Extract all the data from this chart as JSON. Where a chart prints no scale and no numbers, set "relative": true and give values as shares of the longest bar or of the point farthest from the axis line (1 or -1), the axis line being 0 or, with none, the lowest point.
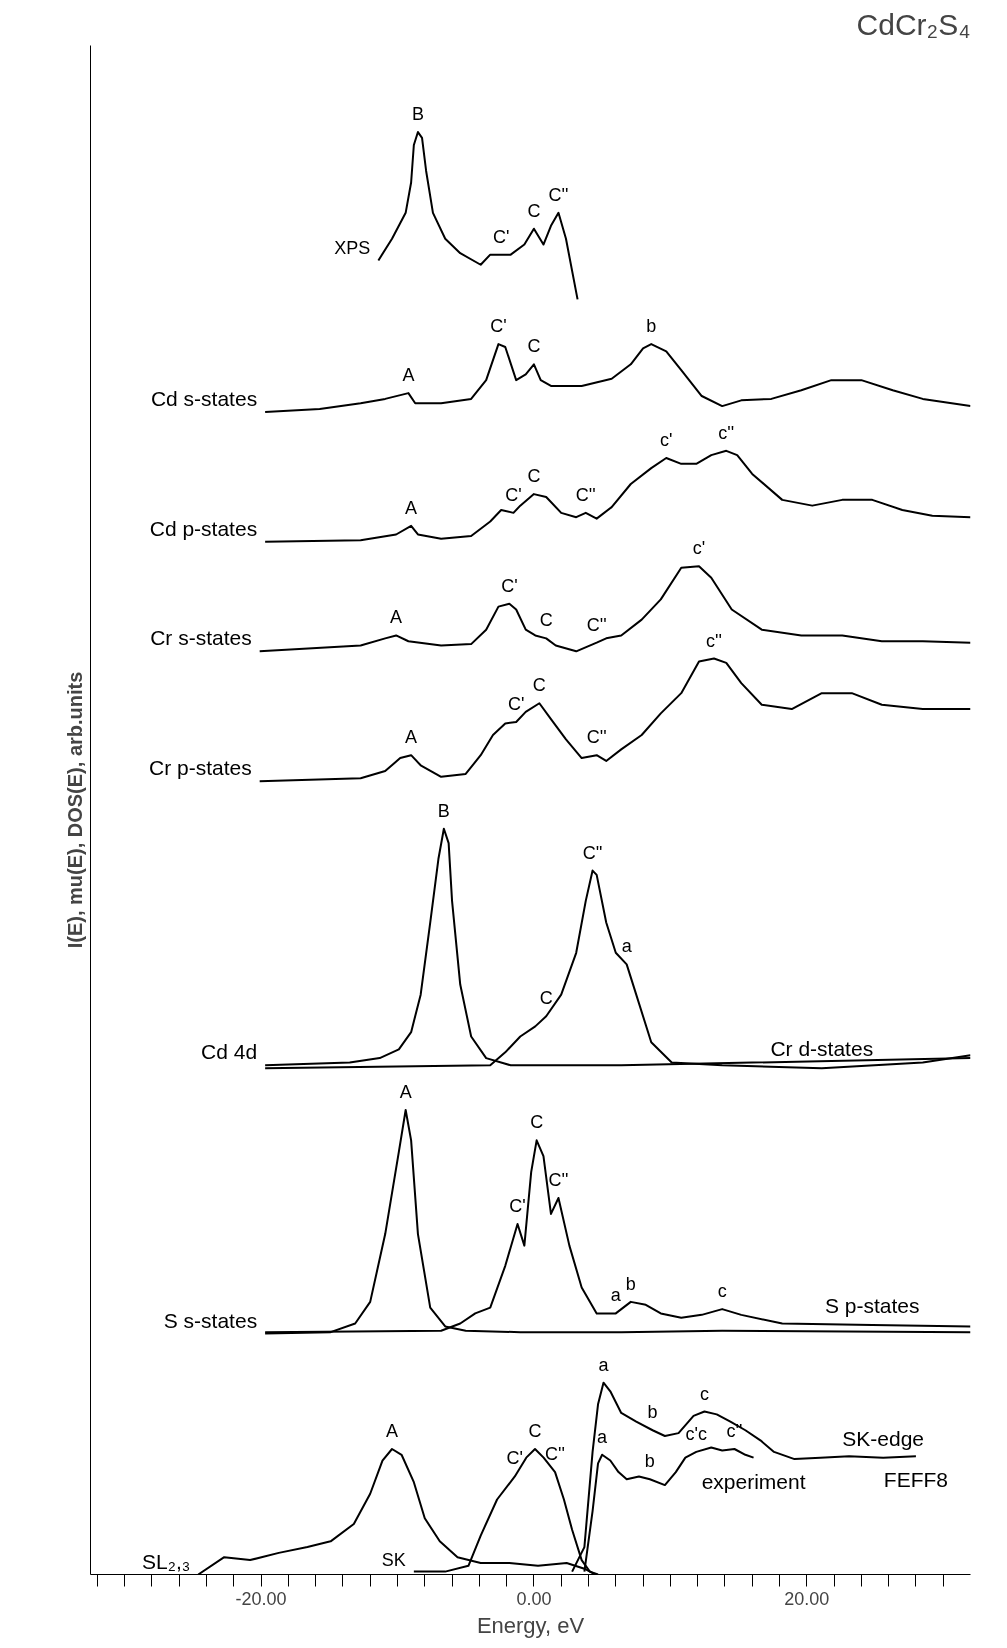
{
  "chart_data": {
    "type": "line",
    "relative": true,
    "title": "CdCr₂S₄",
    "xlabel": "Energy, eV",
    "ylabel": "I(E), mu(E), DOS(E), arb.units",
    "xlim": [
      -32.5,
      32
    ],
    "xticks": [
      {
        "value": -32,
        "label": null
      },
      {
        "value": -30,
        "label": null
      },
      {
        "value": -28,
        "label": null
      },
      {
        "value": -26,
        "label": null
      },
      {
        "value": -24,
        "label": null
      },
      {
        "value": -22,
        "label": null
      },
      {
        "value": -20,
        "label": "-20.00"
      },
      {
        "value": -18,
        "label": null
      },
      {
        "value": -16,
        "label": null
      },
      {
        "value": -14,
        "label": null
      },
      {
        "value": -12,
        "label": null
      },
      {
        "value": -10,
        "label": null
      },
      {
        "value": -8,
        "label": null
      },
      {
        "value": -6,
        "label": null
      },
      {
        "value": -4,
        "label": null
      },
      {
        "value": -2,
        "label": null
      },
      {
        "value": 0,
        "label": "0.00"
      },
      {
        "value": 2,
        "label": null
      },
      {
        "value": 4,
        "label": null
      },
      {
        "value": 6,
        "label": null
      },
      {
        "value": 8,
        "label": null
      },
      {
        "value": 10,
        "label": null
      },
      {
        "value": 12,
        "label": null
      },
      {
        "value": 14,
        "label": null
      },
      {
        "value": 16,
        "label": null
      },
      {
        "value": 18,
        "label": null
      },
      {
        "value": 20,
        "label": "20.00"
      },
      {
        "value": 22,
        "label": null
      },
      {
        "value": 24,
        "label": null
      },
      {
        "value": 26,
        "label": null
      },
      {
        "value": 28,
        "label": null
      },
      {
        "value": 30,
        "label": null
      }
    ],
    "grid": false,
    "line_style": "solid",
    "marker": "none",
    "series": [
      {
        "color": "#000000",
        "x": [
          -11.4,
          -10.4,
          -9.4,
          -9.0,
          -8.8,
          -8.5,
          -8.2,
          -7.9,
          -7.4,
          -6.5,
          -5.4,
          -3.9,
          -3.2,
          -2.4,
          -1.7,
          -0.7,
          0,
          0.7,
          1.25,
          1.8,
          2.35,
          3.2
        ],
        "values": [
          0.911,
          0.926,
          0.944,
          0.965,
          0.991,
          1.0,
          0.996,
          0.973,
          0.944,
          0.926,
          0.916,
          0.908,
          0.915,
          0.915,
          0.915,
          0.922,
          0.933,
          0.922,
          0.935,
          0.944,
          0.926,
          0.884
        ]
      },
      {
        "color": "#000000",
        "x": [
          -19.7,
          -15.7,
          -12.7,
          -10.9,
          -9.2,
          -8.7,
          -6.8,
          -4.6,
          -3.5,
          -2.6,
          -2.1,
          -1.3,
          -0.6,
          0,
          0.5,
          1.25,
          3.5,
          5.7,
          7.1,
          8.0,
          8.6,
          9.7,
          10.8,
          12.3,
          13.8,
          15.2,
          17.4,
          19.6,
          21.8,
          24.0,
          26.3,
          28.5,
          32.0
        ],
        "values": [
          0.806,
          0.808,
          0.812,
          0.815,
          0.819,
          0.812,
          0.812,
          0.815,
          0.828,
          0.853,
          0.851,
          0.828,
          0.832,
          0.839,
          0.828,
          0.824,
          0.824,
          0.829,
          0.839,
          0.85,
          0.853,
          0.848,
          0.835,
          0.817,
          0.81,
          0.814,
          0.815,
          0.821,
          0.828,
          0.828,
          0.821,
          0.815,
          0.81
        ]
      },
      {
        "color": "#000000",
        "x": [
          -19.7,
          -12.7,
          -10.1,
          -9.0,
          -8.5,
          -6.8,
          -4.6,
          -3.2,
          -2.4,
          -1.5,
          -1.0,
          0,
          0.9,
          2.0,
          3.1,
          3.8,
          4.6,
          5.7,
          7.1,
          8.6,
          9.7,
          10.8,
          11.9,
          13.0,
          14.1,
          14.9,
          16.0,
          18.2,
          20.4,
          22.6,
          24.8,
          27.0,
          29.2,
          32.0
        ],
        "values": [
          0.716,
          0.717,
          0.721,
          0.727,
          0.721,
          0.718,
          0.72,
          0.73,
          0.738,
          0.736,
          0.741,
          0.749,
          0.747,
          0.736,
          0.733,
          0.736,
          0.732,
          0.74,
          0.756,
          0.767,
          0.774,
          0.77,
          0.77,
          0.776,
          0.779,
          0.776,
          0.763,
          0.745,
          0.741,
          0.745,
          0.745,
          0.738,
          0.734,
          0.733
        ]
      },
      {
        "color": "#000000",
        "x": [
          -20.1,
          -12.7,
          -10.9,
          -10.1,
          -9.2,
          -6.8,
          -4.6,
          -3.5,
          -2.6,
          -1.8,
          -1.3,
          -0.6,
          0.1,
          0.9,
          1.6,
          3.1,
          4.6,
          5.3,
          6.4,
          7.9,
          9.3,
          10.8,
          12.1,
          13.0,
          14.5,
          16.7,
          19.6,
          22.6,
          25.5,
          28.5,
          32.0
        ],
        "values": [
          0.64,
          0.644,
          0.649,
          0.651,
          0.647,
          0.644,
          0.645,
          0.655,
          0.671,
          0.673,
          0.669,
          0.655,
          0.651,
          0.649,
          0.644,
          0.64,
          0.646,
          0.649,
          0.651,
          0.662,
          0.676,
          0.698,
          0.699,
          0.691,
          0.669,
          0.655,
          0.651,
          0.651,
          0.647,
          0.647,
          0.646
        ]
      },
      {
        "color": "#000000",
        "x": [
          -20.1,
          -12.7,
          -10.9,
          -9.8,
          -9.0,
          -8.3,
          -6.8,
          -5.0,
          -3.9,
          -3.0,
          -2.1,
          -1.3,
          -0.6,
          0.4,
          1.25,
          2.35,
          3.5,
          4.6,
          5.3,
          6.4,
          7.9,
          9.3,
          10.8,
          12.1,
          13.2,
          14.1,
          15.2,
          16.7,
          18.9,
          21.1,
          23.3,
          25.5,
          28.5,
          32.0
        ],
        "values": [
          0.55,
          0.552,
          0.557,
          0.566,
          0.568,
          0.561,
          0.553,
          0.555,
          0.568,
          0.582,
          0.59,
          0.591,
          0.598,
          0.604,
          0.593,
          0.579,
          0.566,
          0.568,
          0.564,
          0.572,
          0.582,
          0.597,
          0.611,
          0.633,
          0.635,
          0.632,
          0.618,
          0.603,
          0.6,
          0.611,
          0.611,
          0.603,
          0.6,
          0.6
        ]
      },
      {
        "color": "#000000",
        "x": [
          -19.7,
          -13.5,
          -11.3,
          -9.9,
          -9.0,
          -8.3,
          -7.6,
          -7.0,
          -6.6,
          -6.25,
          -6.0,
          -5.4,
          -4.6,
          -3.5,
          -1.7,
          6.4,
          32
        ],
        "values": [
          0.353,
          0.355,
          0.358,
          0.364,
          0.376,
          0.402,
          0.452,
          0.496,
          0.517,
          0.507,
          0.467,
          0.409,
          0.373,
          0.358,
          0.353,
          0.353,
          0.358
        ]
      },
      {
        "color": "#000000",
        "x": [
          -19.7,
          -3.2,
          -2.1,
          -1.0,
          0.1,
          0.9,
          2.0,
          3.1,
          3.8,
          4.3,
          4.6,
          5.3,
          6.0,
          6.8,
          7.5,
          8.6,
          10.1,
          13.8,
          21.1,
          28.5,
          32
        ],
        "values": [
          0.351,
          0.353,
          0.362,
          0.373,
          0.38,
          0.387,
          0.402,
          0.431,
          0.467,
          0.488,
          0.485,
          0.452,
          0.431,
          0.423,
          0.402,
          0.369,
          0.355,
          0.353,
          0.351,
          0.355,
          0.36
        ]
      },
      {
        "color": "#000000",
        "x": [
          -19.7,
          -14.9,
          -13.1,
          -12.0,
          -10.9,
          -9.9,
          -9.4,
          -9.0,
          -8.5,
          -7.6,
          -6.5,
          -5.0,
          -1.0,
          6.4,
          13.8,
          32
        ],
        "values": [
          0.167,
          0.168,
          0.174,
          0.189,
          0.236,
          0.293,
          0.322,
          0.301,
          0.236,
          0.185,
          0.172,
          0.169,
          0.168,
          0.168,
          0.169,
          0.168
        ]
      },
      {
        "color": "#000000",
        "x": [
          -19.7,
          -6.8,
          -5.4,
          -4.3,
          -3.2,
          -2.1,
          -1.2,
          -0.7,
          -0.2,
          0.2,
          0.7,
          1.25,
          1.8,
          2.6,
          3.5,
          4.6,
          6.0,
          7.1,
          8.2,
          9.3,
          10.8,
          12.3,
          13.8,
          15.2,
          18.2,
          24.8,
          32
        ],
        "values": [
          0.168,
          0.169,
          0.174,
          0.181,
          0.185,
          0.214,
          0.243,
          0.228,
          0.279,
          0.301,
          0.29,
          0.25,
          0.261,
          0.228,
          0.199,
          0.181,
          0.181,
          0.189,
          0.187,
          0.181,
          0.178,
          0.18,
          0.184,
          0.18,
          0.174,
          0.173,
          0.172
        ]
      },
      {
        "color": "#000000",
        "x": [
          -24.6,
          -22.7,
          -20.8,
          -18.7,
          -16.6,
          -14.9,
          -13.2,
          -12.0,
          -11.1,
          -10.4,
          -9.7,
          -8.8,
          -8.0,
          -6.9,
          -5.6,
          -3.9,
          -1.8,
          0.3,
          2.4,
          3.7,
          4.5
        ],
        "values": [
          0,
          0.012,
          0.01,
          0.015,
          0.019,
          0.023,
          0.035,
          0.056,
          0.079,
          0.087,
          0.083,
          0.064,
          0.039,
          0.023,
          0.012,
          0.008,
          0.008,
          0.006,
          0.008,
          0.004,
          0
        ]
      },
      {
        "color": "#000000",
        "x": [
          -8.8,
          -6.5,
          -4.8,
          -3.9,
          -2.7,
          -1.4,
          -0.56,
          0.08,
          0.71,
          1.55,
          2.2,
          2.8,
          3.5,
          4.1,
          4.7
        ],
        "values": [
          0.002,
          0.002,
          0.006,
          0.027,
          0.052,
          0.068,
          0.081,
          0.087,
          0.081,
          0.071,
          0.052,
          0.031,
          0.01,
          0.002,
          0
        ]
      },
      {
        "color": "#000000",
        "x": [
          2.8,
          3.7,
          4.3,
          4.7,
          5.1,
          5.6,
          6.4,
          7.5,
          8.7,
          9.6,
          10.6,
          11.7,
          12.5,
          13.4,
          14.4,
          15.5,
          16.6,
          17.6,
          19.1,
          21.0,
          23.1,
          25.6,
          28.0
        ],
        "values": [
          0.002,
          0.019,
          0.085,
          0.118,
          0.133,
          0.127,
          0.112,
          0.106,
          0.1,
          0.096,
          0.098,
          0.11,
          0.113,
          0.111,
          0.106,
          0.1,
          0.093,
          0.085,
          0.08,
          0.081,
          0.082,
          0.081,
          0.082
        ]
      },
      {
        "color": "#000000",
        "x": [
          3.7,
          4.3,
          4.7,
          5.0,
          5.6,
          6.2,
          6.8,
          7.7,
          8.5,
          9.6,
          10.4,
          11.1,
          11.9,
          13.0,
          13.8,
          14.7,
          15.5,
          16.1
        ],
        "values": [
          0.002,
          0.044,
          0.077,
          0.083,
          0.079,
          0.071,
          0.066,
          0.068,
          0.066,
          0.062,
          0.071,
          0.081,
          0.085,
          0.088,
          0.086,
          0.087,
          0.083,
          0.081
        ]
      }
    ],
    "annotations": [
      {
        "text": "B",
        "x": -8.5,
        "y": 1.0
      },
      {
        "text": "XPS",
        "x": -11.4,
        "y": 0.911
      },
      {
        "text": "C'",
        "x": -2.4,
        "y": 0.915
      },
      {
        "text": "C",
        "x": 0,
        "y": 0.933
      },
      {
        "text": "C''",
        "x": 1.8,
        "y": 0.944
      },
      {
        "text": "Cd s-states",
        "x": -19.7,
        "y": 0.806
      },
      {
        "text": "A",
        "x": -9.2,
        "y": 0.819
      },
      {
        "text": "C'",
        "x": -2.6,
        "y": 0.853
      },
      {
        "text": "C",
        "x": 0,
        "y": 0.839
      },
      {
        "text": "b",
        "x": 8.6,
        "y": 0.853
      },
      {
        "text": "Cd p-states",
        "x": -19.7,
        "y": 0.716
      },
      {
        "text": "A",
        "x": -9.0,
        "y": 0.727
      },
      {
        "text": "C'",
        "x": -1.5,
        "y": 0.736
      },
      {
        "text": "C",
        "x": 0,
        "y": 0.749
      },
      {
        "text": "C''",
        "x": 3.8,
        "y": 0.736
      },
      {
        "text": "c'",
        "x": 9.7,
        "y": 0.774
      },
      {
        "text": "c''",
        "x": 14.1,
        "y": 0.779
      },
      {
        "text": "Cr s-states",
        "x": -20.1,
        "y": 0.64
      },
      {
        "text": "A",
        "x": -10.1,
        "y": 0.651
      },
      {
        "text": "C'",
        "x": -1.8,
        "y": 0.673
      },
      {
        "text": "C",
        "x": 0.9,
        "y": 0.649
      },
      {
        "text": "C''",
        "x": 4.6,
        "y": 0.646
      },
      {
        "text": "c'",
        "x": 12.1,
        "y": 0.699
      },
      {
        "text": "Cr p-states",
        "x": -20.1,
        "y": 0.55
      },
      {
        "text": "A",
        "x": -9.0,
        "y": 0.568
      },
      {
        "text": "C'",
        "x": -1.3,
        "y": 0.591
      },
      {
        "text": "C",
        "x": 0.4,
        "y": 0.604
      },
      {
        "text": "C''",
        "x": 4.6,
        "y": 0.568
      },
      {
        "text": "c''",
        "x": 13.2,
        "y": 0.635
      },
      {
        "text": "B",
        "x": -6.6,
        "y": 0.517
      },
      {
        "text": "Cd 4d",
        "x": -19.7,
        "y": 0.353
      },
      {
        "text": "C''",
        "x": 4.3,
        "y": 0.488
      },
      {
        "text": "a",
        "x": 6.8,
        "y": 0.423
      },
      {
        "text": "C",
        "x": 0.9,
        "y": 0.387
      },
      {
        "text": "Cr d-states",
        "x": 21.1,
        "y": 0.351
      },
      {
        "text": "A",
        "x": -9.4,
        "y": 0.322
      },
      {
        "text": "S s-states",
        "x": -19.7,
        "y": 0.167
      },
      {
        "text": "C",
        "x": 0.2,
        "y": 0.301
      },
      {
        "text": "C'",
        "x": -1.2,
        "y": 0.243
      },
      {
        "text": "C''",
        "x": 1.8,
        "y": 0.261
      },
      {
        "text": "a",
        "x": 6.0,
        "y": 0.181
      },
      {
        "text": "b",
        "x": 7.1,
        "y": 0.189
      },
      {
        "text": "c",
        "x": 13.8,
        "y": 0.184
      },
      {
        "text": "S p-states",
        "x": 24.8,
        "y": 0.173
      },
      {
        "text": "a",
        "x": 5.1,
        "y": 0.133
      },
      {
        "text": "b",
        "x": 8.7,
        "y": 0.1
      },
      {
        "text": "c",
        "x": 12.5,
        "y": 0.113
      },
      {
        "text": "SK-edge",
        "x": 25.6,
        "y": 0.081
      },
      {
        "text": "A",
        "x": -10.4,
        "y": 0.087
      },
      {
        "text": "C",
        "x": 0.08,
        "y": 0.087
      },
      {
        "text": "C''",
        "x": 1.55,
        "y": 0.071
      },
      {
        "text": "C'",
        "x": -1.4,
        "y": 0.068
      },
      {
        "text": "a",
        "x": 5.0,
        "y": 0.083
      },
      {
        "text": "b",
        "x": 8.5,
        "y": 0.066
      },
      {
        "text": "c'c",
        "x": 11.9,
        "y": 0.085
      },
      {
        "text": "c''",
        "x": 14.7,
        "y": 0.087
      },
      {
        "text": "SL₂,₃",
        "x": -24.6,
        "y": 0
      },
      {
        "text": "SK",
        "x": -8.8,
        "y": 0.002
      },
      {
        "text": "experiment",
        "x": 16.1,
        "y": 0.081
      },
      {
        "text": "FEFF8",
        "x": 28.0,
        "y": 0.082
      }
    ]
  }
}
